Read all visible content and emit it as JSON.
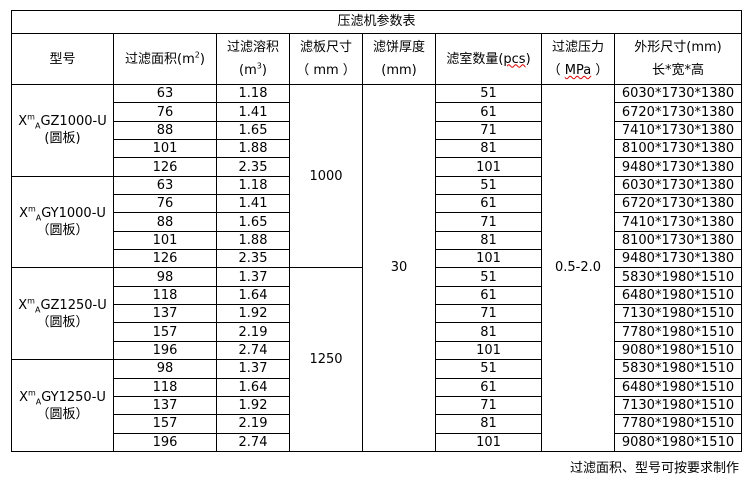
{
  "title": "压滤机参数表",
  "headers": {
    "model": "型号",
    "area": {
      "text": "过滤面积(m",
      "sup": "2",
      "close": ")"
    },
    "volume": {
      "line1": "过滤溶积",
      "line2": "(m",
      "sup": "3",
      "close": ")"
    },
    "plate_size": {
      "line1": "滤板尺寸",
      "line2": "（ mm ）"
    },
    "cake_thickness": {
      "line1": "滤饼厚度",
      "line2": "(mm)"
    },
    "chambers": {
      "text": "滤室数量(",
      "unit": "pcs",
      "close": ")"
    },
    "pressure": {
      "line1": "过滤压力",
      "open": "（ ",
      "unit": "MPa",
      "close": " ）"
    },
    "dimensions": {
      "line1": "外形尺寸(mm)",
      "line2": "长*宽*高"
    }
  },
  "shared": {
    "cake_thickness": "30",
    "pressure": "0.5-2.0"
  },
  "groups": [
    {
      "model": {
        "prefix": "X",
        "sup": "m",
        "sub": "A",
        "rest": "GZ1000-U",
        "note": "(圆板)"
      },
      "plate_size": "1000",
      "rows": [
        [
          "63",
          "1.18",
          "51",
          "6030*1730*1380"
        ],
        [
          "76",
          "1.41",
          "61",
          "6720*1730*1380"
        ],
        [
          "88",
          "1.65",
          "71",
          "7410*1730*1380"
        ],
        [
          "101",
          "1.88",
          "81",
          "8100*1730*1380"
        ],
        [
          "126",
          "2.35",
          "101",
          "9480*1730*1380"
        ]
      ]
    },
    {
      "model": {
        "prefix": "X",
        "sup": "m",
        "sub": "A",
        "rest": "GY1000-U",
        "note": "（圆板）"
      },
      "plate_size": "1000",
      "rows": [
        [
          "63",
          "1.18",
          "51",
          "6030*1730*1380"
        ],
        [
          "76",
          "1.41",
          "61",
          "6720*1730*1380"
        ],
        [
          "88",
          "1.65",
          "71",
          "7410*1730*1380"
        ],
        [
          "101",
          "1.88",
          "81",
          "8100*1730*1380"
        ],
        [
          "126",
          "2.35",
          "101",
          "9480*1730*1380"
        ]
      ]
    },
    {
      "model": {
        "prefix": "X",
        "sup": "m",
        "sub": "A",
        "rest": "GZ1250-U",
        "note": "（圆板）"
      },
      "plate_size": "1250",
      "rows": [
        [
          "98",
          "1.37",
          "51",
          "5830*1980*1510"
        ],
        [
          "118",
          "1.64",
          "61",
          "6480*1980*1510"
        ],
        [
          "137",
          "1.92",
          "71",
          "7130*1980*1510"
        ],
        [
          "157",
          "2.19",
          "81",
          "7780*1980*1510"
        ],
        [
          "196",
          "2.74",
          "101",
          "9080*1980*1510"
        ]
      ]
    },
    {
      "model": {
        "prefix": "X",
        "sup": "m",
        "sub": "A",
        "rest": "GY1250-U",
        "note": "（圆板）"
      },
      "plate_size": "1250",
      "rows": [
        [
          "98",
          "1.37",
          "51",
          "5830*1980*1510"
        ],
        [
          "118",
          "1.64",
          "61",
          "6480*1980*1510"
        ],
        [
          "137",
          "1.92",
          "71",
          "7130*1980*1510"
        ],
        [
          "157",
          "2.19",
          "81",
          "7780*1980*1510"
        ],
        [
          "196",
          "2.74",
          "101",
          "9080*1980*1510"
        ]
      ]
    }
  ],
  "footnote": "过滤面积、型号可按要求制作"
}
